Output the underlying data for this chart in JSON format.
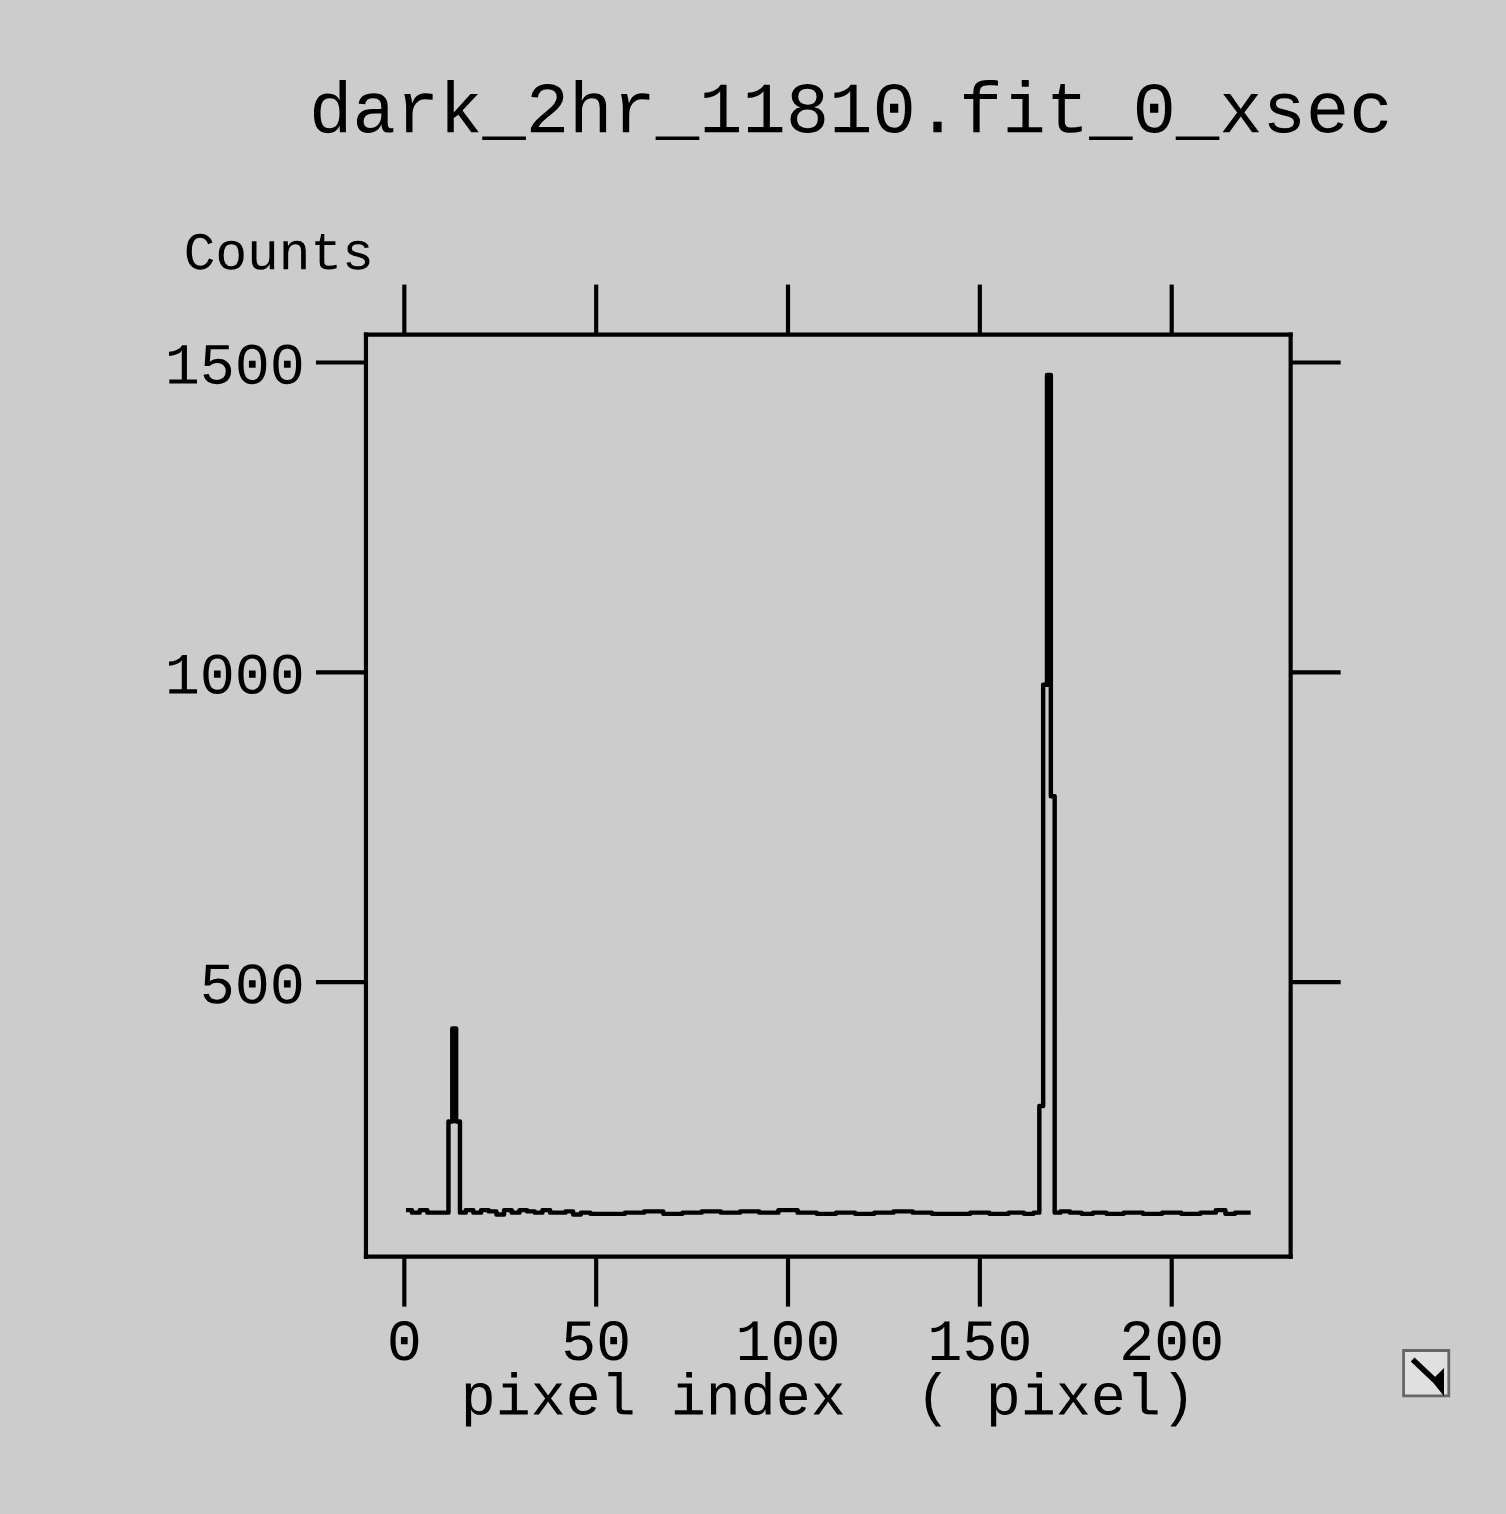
{
  "chart_data": {
    "type": "step",
    "title": "dark_2hr_11810.fit_0_xsec",
    "ylabel": "Counts",
    "xlabel": "pixel index  ( pixel)",
    "x": [
      1,
      3,
      5,
      7,
      9,
      11,
      12,
      13,
      14,
      15,
      17,
      19,
      21,
      23,
      25,
      27,
      29,
      31,
      33,
      35,
      37,
      39,
      41,
      43,
      45,
      47,
      50,
      55,
      60,
      65,
      70,
      75,
      80,
      85,
      90,
      95,
      100,
      105,
      110,
      115,
      120,
      125,
      130,
      135,
      140,
      145,
      150,
      155,
      160,
      163,
      165,
      166,
      167,
      168,
      169,
      170,
      172,
      175,
      178,
      181,
      185,
      190,
      195,
      200,
      205,
      210,
      213,
      215,
      218,
      220
    ],
    "series": [
      {
        "color": "#000000",
        "values": [
          132,
          128,
          132,
          128,
          128,
          128,
          275,
          425,
          275,
          128,
          132,
          128,
          132,
          130,
          125,
          132,
          128,
          132,
          130,
          128,
          132,
          128,
          128,
          130,
          125,
          128,
          126,
          126,
          128,
          130,
          126,
          128,
          130,
          128,
          130,
          128,
          132,
          128,
          126,
          128,
          126,
          128,
          130,
          128,
          126,
          126,
          128,
          126,
          128,
          126,
          128,
          300,
          980,
          1480,
          800,
          128,
          130,
          128,
          126,
          128,
          126,
          128,
          126,
          128,
          126,
          128,
          132,
          126,
          128,
          128
        ]
      }
    ],
    "xlim": [
      -10,
      231
    ],
    "xticks": [
      0,
      50,
      100,
      150,
      200
    ],
    "ylim": [
      57,
      1545
    ],
    "yticks": [
      500,
      1000,
      1500
    ],
    "grid": false,
    "line_style": "solid",
    "marker": "none"
  }
}
